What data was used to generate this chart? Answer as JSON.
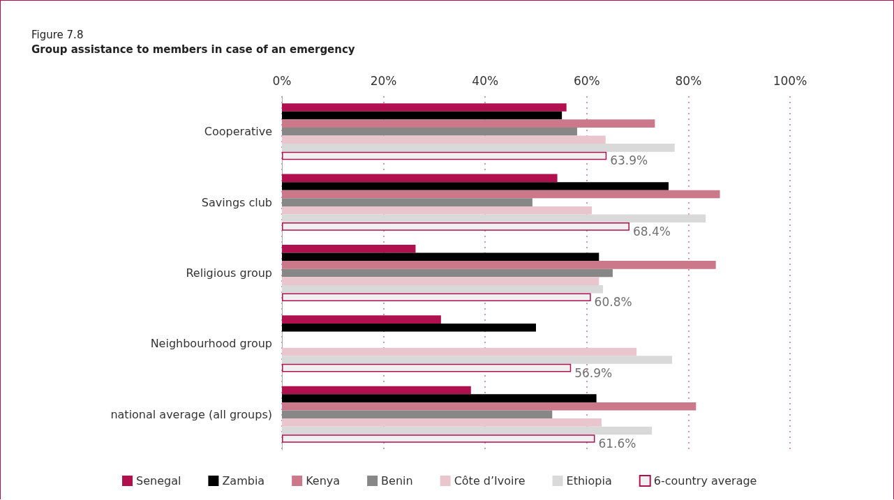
{
  "chart_data": {
    "type": "bar",
    "orientation": "horizontal",
    "subtitle": "Figure 7.8",
    "title": "Group assistance to members in case of an emergency",
    "categories": [
      "Cooperative",
      "Savings club",
      "Religious group",
      "Neighbourhood group",
      "national average (all groups)"
    ],
    "series": [
      {
        "name": "Senegal",
        "color": "#b0104e",
        "values": [
          56.0,
          54.2,
          26.3,
          31.3,
          37.2
        ]
      },
      {
        "name": "Zambia",
        "color": "#000000",
        "values": [
          55.1,
          76.1,
          62.4,
          50.0,
          61.9
        ]
      },
      {
        "name": "Kenya",
        "color": "#cc788b",
        "values": [
          73.4,
          86.2,
          85.4,
          null,
          81.5
        ]
      },
      {
        "name": "Benin",
        "color": "#878787",
        "values": [
          58.1,
          49.3,
          65.1,
          null,
          53.2
        ]
      },
      {
        "name": "Côte d’Ivoire",
        "color": "#e9c6cd",
        "values": [
          63.7,
          61.0,
          62.4,
          69.8,
          62.9
        ]
      },
      {
        "name": "Ethiopia",
        "color": "#d9d9d9",
        "values": [
          77.3,
          83.4,
          63.2,
          76.8,
          72.8
        ]
      },
      {
        "name": "6-country average",
        "color": "#f0f0f0",
        "values": [
          63.9,
          68.4,
          60.8,
          56.9,
          61.6
        ],
        "value_labels": [
          "63.9%",
          "68.4%",
          "60.8%",
          "56.9%",
          "61.6%"
        ]
      }
    ],
    "xlim": [
      0,
      100
    ],
    "xticks": [
      {
        "value": 0,
        "label": "0%"
      },
      {
        "value": 20,
        "label": "20%"
      },
      {
        "value": 40,
        "label": "40%"
      },
      {
        "value": 60,
        "label": "60%"
      },
      {
        "value": 80,
        "label": "80%"
      },
      {
        "value": 100,
        "label": "100%"
      }
    ],
    "grid": "x",
    "legend": "bottom"
  }
}
